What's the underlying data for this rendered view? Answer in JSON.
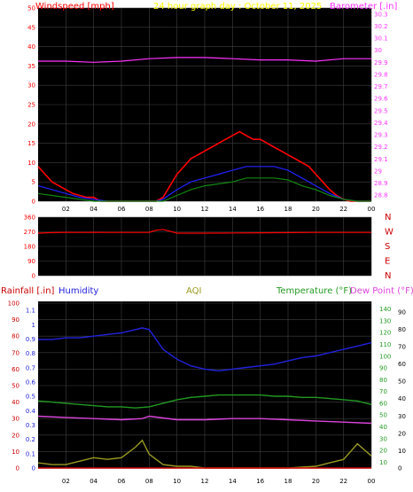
{
  "header": {
    "windspeed_label": "Windspeed [mph]",
    "title": "24 hour graph day : October 11, 2025",
    "barometer_label": "Barometer [.in]"
  },
  "colors": {
    "panel_bg": "#000000",
    "grid": "#404040",
    "wind_red": "#ff0000",
    "wind_blue": "#2222ff",
    "wind_green": "#118811",
    "barometer": "#ff33ff",
    "title_yellow": "#ffff00",
    "humidity": "#2222dd",
    "aqi": "#999922",
    "temperature": "#229922",
    "dewpoint": "#dd44dd",
    "rainfall": "#cc0000"
  },
  "x_ticks": [
    "02",
    "04",
    "06",
    "08",
    "10",
    "12",
    "14",
    "16",
    "18",
    "20",
    "22",
    "00"
  ],
  "wind_panel": {
    "left_ticks": [
      "50",
      "45",
      "40",
      "35",
      "30",
      "25",
      "20",
      "15",
      "10",
      "5",
      "0"
    ],
    "right_ticks": [
      "30.3",
      "30.2",
      "30.1",
      "30",
      "29.9",
      "29.8",
      "29.7",
      "29.6",
      "29.5",
      "29.4",
      "29.3",
      "29.2",
      "29.1",
      "29",
      "28.9",
      "28.8"
    ]
  },
  "direction_panel": {
    "left_ticks": [
      "360",
      "270",
      "180",
      "90",
      "0"
    ],
    "compass": [
      "N",
      "W",
      "S",
      "E",
      "N"
    ]
  },
  "bottom_panel": {
    "rain_label": "Rainfall [.in]",
    "humidity_label": "Humidity",
    "aqi_label": "AQI",
    "temperature_label": "Temperature (°F)",
    "dewpoint_label": "Dew Point (°F)",
    "humidity_ticks": [
      "100",
      "90",
      "80",
      "70",
      "60",
      "50",
      "40",
      "30",
      "20",
      "10",
      "0"
    ],
    "rain_ticks": [
      "1.1",
      "1",
      "0.9",
      "0.8",
      "0.7",
      "0.6",
      "0.5",
      "0.4",
      "0.3",
      "0.2",
      "0.1",
      "0"
    ],
    "temp_ticks": [
      "140",
      "130",
      "120",
      "110",
      "100",
      "90",
      "80",
      "70",
      "60",
      "50",
      "40",
      "30",
      "20",
      "10"
    ],
    "aqi_ticks": [
      "90",
      "80",
      "70",
      "60",
      "50",
      "40",
      "30",
      "20",
      "10",
      "0"
    ]
  },
  "chart_data": [
    {
      "type": "line",
      "x_unit": "hour",
      "ylim": [
        0,
        50
      ],
      "y2lim": [
        28.75,
        30.35
      ],
      "series": [
        {
          "name": "Windspeed",
          "color": "#ff0000",
          "x": [
            0,
            0.5,
            1,
            1.5,
            2,
            2.5,
            3,
            3.5,
            4,
            4.5,
            5,
            5.5,
            6,
            6.5,
            7,
            7.5,
            8,
            8.5,
            9,
            9.5,
            10,
            10.5,
            11,
            11.5,
            12,
            12.5,
            13,
            13.5,
            14,
            14.5,
            15,
            15.5,
            16,
            16.5,
            17,
            17.5,
            18,
            18.5,
            19,
            19.5,
            20,
            20.5,
            21,
            21.5,
            22,
            22.5,
            23,
            23.5,
            24
          ],
          "y": [
            9,
            7,
            5,
            4,
            3,
            2,
            1.5,
            1,
            1,
            0,
            0,
            0,
            0,
            0,
            0,
            0,
            0,
            0,
            1,
            4,
            7,
            9,
            11,
            12,
            13,
            14,
            15,
            16,
            17,
            18,
            17,
            16,
            16,
            15,
            14,
            13,
            12,
            11,
            10,
            9,
            7,
            5,
            3,
            1.5,
            0.5,
            0,
            0,
            0,
            0
          ]
        },
        {
          "name": "Wind average",
          "color": "#2222ff",
          "x": [
            0,
            1,
            2,
            3,
            4,
            5,
            6,
            7,
            8,
            8.5,
            9,
            10,
            11,
            12,
            13,
            14,
            15,
            16,
            17,
            18,
            19,
            20,
            21,
            22,
            23,
            24
          ],
          "y": [
            4,
            3,
            2,
            1,
            0.5,
            0,
            0,
            0,
            0,
            0,
            0.5,
            3,
            5,
            6,
            7,
            8,
            9,
            9,
            9,
            8,
            6,
            4,
            2,
            0.5,
            0,
            0
          ]
        },
        {
          "name": "Wind gust minimum",
          "color": "#118811",
          "x": [
            0,
            1,
            2,
            3,
            4,
            5,
            6,
            7,
            8,
            8.5,
            9,
            10,
            11,
            12,
            13,
            14,
            15,
            16,
            17,
            18,
            19,
            20,
            21,
            22,
            23,
            24
          ],
          "y": [
            2,
            1.5,
            1,
            0.5,
            0,
            0,
            0,
            0,
            0,
            0,
            0,
            1.5,
            3,
            4,
            4.5,
            5,
            6,
            6,
            6,
            5.5,
            4,
            3,
            1.5,
            0.5,
            0,
            0
          ]
        },
        {
          "name": "Barometer",
          "color": "#ff33ff",
          "axis": "right",
          "x": [
            0,
            2,
            4,
            6,
            8,
            10,
            12,
            14,
            16,
            18,
            20,
            22,
            24
          ],
          "y": [
            29.91,
            29.91,
            29.9,
            29.91,
            29.93,
            29.94,
            29.94,
            29.93,
            29.92,
            29.92,
            29.91,
            29.93,
            29.93
          ]
        }
      ]
    },
    {
      "type": "line",
      "ylim": [
        0,
        360
      ],
      "series": [
        {
          "name": "Wind direction",
          "color": "#ff0000",
          "x": [
            0,
            1,
            2,
            3,
            4,
            5,
            6,
            7,
            8,
            8.5,
            9,
            10,
            12,
            14,
            16,
            18,
            20,
            22,
            24
          ],
          "y": [
            262,
            265,
            267,
            266,
            267,
            266,
            266,
            266,
            267,
            280,
            285,
            262,
            262,
            263,
            264,
            265,
            266,
            266,
            266
          ]
        }
      ]
    },
    {
      "type": "line",
      "ylim": [
        0,
        100
      ],
      "series": [
        {
          "name": "Humidity",
          "color": "#2222dd",
          "x": [
            0,
            1,
            2,
            3,
            4,
            5,
            6,
            7,
            7.5,
            8,
            8.5,
            9,
            10,
            11,
            12,
            13,
            14,
            15,
            16,
            17,
            18,
            19,
            20,
            21,
            22,
            23,
            24
          ],
          "y": [
            78,
            78,
            79,
            79,
            80,
            81,
            82,
            84,
            85,
            84,
            78,
            72,
            66,
            62,
            60,
            59,
            60,
            61,
            62,
            63,
            65,
            67,
            68,
            70,
            72,
            74,
            76
          ]
        },
        {
          "name": "Temperature",
          "color": "#229922",
          "axis": "right",
          "x": [
            0,
            1,
            2,
            3,
            4,
            5,
            6,
            7,
            8,
            9,
            10,
            11,
            12,
            13,
            14,
            15,
            16,
            17,
            18,
            19,
            20,
            21,
            22,
            23,
            24
          ],
          "y": [
            62,
            61,
            60,
            59,
            58,
            57,
            57,
            56,
            57,
            60,
            63,
            65,
            66,
            67,
            67,
            67,
            67,
            66,
            66,
            65,
            65,
            64,
            63,
            62,
            59
          ]
        },
        {
          "name": "Dew Point",
          "color": "#dd44dd",
          "axis": "right",
          "x": [
            0,
            2,
            4,
            6,
            7.5,
            8,
            10,
            12,
            14,
            16,
            18,
            20,
            22,
            24
          ],
          "y": [
            49,
            48,
            47,
            46,
            47,
            49,
            46,
            46,
            47,
            47,
            46,
            45,
            44,
            43
          ]
        },
        {
          "name": "AQI",
          "color": "#999922",
          "axis": "right2",
          "x": [
            0,
            1,
            2,
            3,
            4,
            5,
            6,
            7,
            7.5,
            8,
            9,
            10,
            11,
            12,
            14,
            16,
            18,
            20,
            21,
            22,
            23,
            24
          ],
          "y": [
            3,
            2,
            2,
            4,
            6,
            5,
            6,
            12,
            16,
            8,
            2,
            1,
            1,
            0,
            0,
            0,
            0,
            1,
            3,
            5,
            14,
            7
          ]
        },
        {
          "name": "Rainfall",
          "color": "#cc0000",
          "x": [
            0,
            24
          ],
          "y": [
            0,
            0
          ]
        }
      ]
    }
  ]
}
